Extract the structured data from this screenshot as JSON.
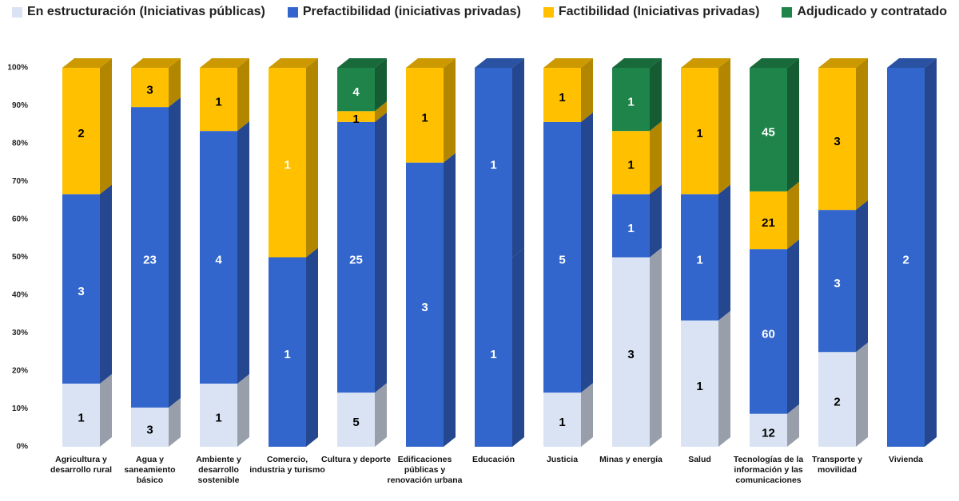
{
  "chart_data": {
    "type": "bar",
    "stacked": "percent",
    "categories": [
      "Agricultura y desarrollo rural",
      "Agua y saneamiento básico",
      "Ambiente y desarrollo sostenible",
      "Comercio, industria y turismo",
      "Cultura y deporte",
      "Edificaciones públicas y renovación urbana",
      "Educación",
      "Justicia",
      "Minas y energía",
      "Salud",
      "Tecnologías de la información y las comunicaciones",
      "Transporte y movilidad",
      "Vivienda"
    ],
    "series": [
      {
        "name": "En estructuración (Iniciativas públicas)",
        "color": "#dae3f3",
        "label_color": "#000000",
        "values": [
          1,
          3,
          1,
          null,
          5,
          null,
          null,
          1,
          3,
          1,
          12,
          2,
          null
        ]
      },
      {
        "name": "Prefactibilidad (iniciativas privadas)",
        "color": "#3366cc",
        "label_color": "#ffffff",
        "values": [
          3,
          23,
          4,
          1,
          25,
          3,
          1,
          5,
          1,
          1,
          60,
          3,
          2
        ]
      },
      {
        "name": "Factibilidad (Iniciativas privadas)",
        "color": "#ffc000",
        "label_color": "#000000",
        "point_colors": [
          "#ffc000",
          "#ffc000",
          "#ffc000",
          "#ffc000",
          "#ffc000",
          "#ffc000",
          "#3366cc",
          "#ffc000",
          "#ffc000",
          "#ffc000",
          "#ffc000",
          "#ffc000",
          "#ffc000"
        ],
        "point_label_colors": [
          "#000000",
          "#000000",
          "#000000",
          "#ffffff",
          "#000000",
          "#000000",
          "#ffffff",
          "#000000",
          "#000000",
          "#000000",
          "#000000",
          "#000000",
          "#000000"
        ],
        "values": [
          2,
          3,
          1,
          1,
          1,
          1,
          1,
          1,
          1,
          1,
          21,
          3,
          null
        ]
      },
      {
        "name": "Adjudicado y contratado",
        "color": "#1e8449",
        "label_color": "#ffffff",
        "values": [
          null,
          null,
          null,
          null,
          4,
          null,
          null,
          null,
          1,
          null,
          45,
          null,
          null
        ]
      }
    ],
    "ylim": [
      0,
      100
    ],
    "yticks": [
      {
        "value": 0,
        "label": "0%"
      },
      {
        "value": 10,
        "label": "10%"
      },
      {
        "value": 20,
        "label": "20%"
      },
      {
        "value": 30,
        "label": "30%"
      },
      {
        "value": 40,
        "label": "40%"
      },
      {
        "value": 50,
        "label": "50%"
      },
      {
        "value": 60,
        "label": "60%"
      },
      {
        "value": 70,
        "label": "70%"
      },
      {
        "value": 80,
        "label": "80%"
      },
      {
        "value": 90,
        "label": "90%"
      },
      {
        "value": 100,
        "label": "100%"
      }
    ],
    "legend": "top"
  }
}
